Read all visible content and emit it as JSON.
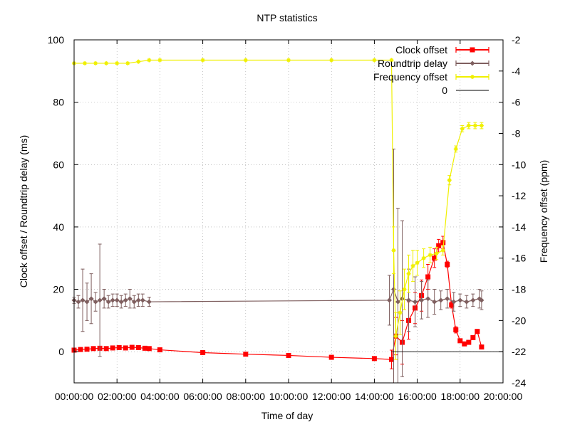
{
  "chart_data": {
    "type": "line",
    "title": "NTP statistics",
    "xlabel": "Time of day",
    "ylabel": "Clock offset / Roundtrip delay (ms)",
    "y2label": "Frequency offset (ppm)",
    "x_unit": "hours",
    "xlim": [
      0,
      20
    ],
    "ylim": [
      -10,
      100
    ],
    "y2lim": [
      -24,
      -2
    ],
    "x_ticks": [
      {
        "v": 0,
        "label": "00:00:00"
      },
      {
        "v": 2,
        "label": "02:00:00"
      },
      {
        "v": 4,
        "label": "04:00:00"
      },
      {
        "v": 6,
        "label": "06:00:00"
      },
      {
        "v": 8,
        "label": "08:00:00"
      },
      {
        "v": 10,
        "label": "10:00:00"
      },
      {
        "v": 12,
        "label": "12:00:00"
      },
      {
        "v": 14,
        "label": "14:00:00"
      },
      {
        "v": 16,
        "label": "16:00:00"
      },
      {
        "v": 18,
        "label": "18:00:00"
      },
      {
        "v": 20,
        "label": "20:00:00"
      }
    ],
    "y_ticks": [
      {
        "v": 0,
        "label": "0"
      },
      {
        "v": 20,
        "label": "20"
      },
      {
        "v": 40,
        "label": "40"
      },
      {
        "v": 60,
        "label": "60"
      },
      {
        "v": 80,
        "label": "80"
      },
      {
        "v": 100,
        "label": "100"
      }
    ],
    "y2_ticks": [
      {
        "v": -24,
        "label": "-24"
      },
      {
        "v": -22,
        "label": "-22"
      },
      {
        "v": -20,
        "label": "-20"
      },
      {
        "v": -18,
        "label": "-18"
      },
      {
        "v": -16,
        "label": "-16"
      },
      {
        "v": -14,
        "label": "-14"
      },
      {
        "v": -12,
        "label": "-12"
      },
      {
        "v": -10,
        "label": "-10"
      },
      {
        "v": -8,
        "label": "-8"
      },
      {
        "v": -6,
        "label": "-6"
      },
      {
        "v": -4,
        "label": "-4"
      },
      {
        "v": -2,
        "label": "-2"
      }
    ],
    "grid": true,
    "legend": "top-right",
    "series": [
      {
        "name": "Clock offset",
        "color": "#ff0000",
        "axis": "y1",
        "marker": "square",
        "error_bars": true,
        "x": [
          0.0,
          0.3,
          0.6,
          0.9,
          1.2,
          1.5,
          1.8,
          2.1,
          2.4,
          2.7,
          3.0,
          3.3,
          3.5,
          4.0,
          6.0,
          8.0,
          10.0,
          12.0,
          14.0,
          14.8,
          15.0,
          15.3,
          15.6,
          15.9,
          16.2,
          16.5,
          16.8,
          17.0,
          17.2,
          17.4,
          17.6,
          17.8,
          18.0,
          18.2,
          18.4,
          18.6,
          18.8,
          19.0
        ],
        "y": [
          0.5,
          0.7,
          0.8,
          1.0,
          1.1,
          1.0,
          1.2,
          1.3,
          1.2,
          1.4,
          1.3,
          1.1,
          1.0,
          0.6,
          -0.3,
          -0.8,
          -1.2,
          -1.8,
          -2.2,
          -2.5,
          5.0,
          3.0,
          10.0,
          14.0,
          18.0,
          24.0,
          30.0,
          34.0,
          35.0,
          28.0,
          15.0,
          7.0,
          3.5,
          2.5,
          3.0,
          4.5,
          6.5,
          1.5
        ],
        "err": [
          0.4,
          0.4,
          0.4,
          0.5,
          0.5,
          0.4,
          0.5,
          0.5,
          0.4,
          0.5,
          0.5,
          0.4,
          0.4,
          0,
          0,
          0,
          0,
          0,
          0,
          3,
          6,
          7,
          6,
          5,
          5,
          4,
          3,
          2,
          2,
          1,
          1,
          1,
          0.5,
          0.5,
          0.5,
          0.5,
          0.5,
          0.5
        ]
      },
      {
        "name": "Roundtrip delay",
        "color": "#7f5f5f",
        "axis": "y1",
        "marker": "diamond",
        "error_bars": true,
        "x": [
          0.0,
          0.2,
          0.4,
          0.6,
          0.8,
          1.0,
          1.2,
          1.4,
          1.6,
          1.8,
          2.0,
          2.2,
          2.4,
          2.6,
          2.8,
          3.0,
          3.2,
          3.5,
          14.7,
          14.9,
          15.1,
          15.3,
          15.6,
          15.9,
          16.2,
          16.5,
          16.8,
          17.1,
          17.4,
          17.7,
          18.0,
          18.3,
          18.6,
          18.9,
          19.0
        ],
        "y": [
          16.5,
          16.0,
          16.5,
          16.0,
          17.0,
          16.0,
          16.5,
          17.0,
          16.0,
          16.5,
          16.5,
          16.0,
          16.5,
          17.0,
          16.0,
          16.5,
          16.5,
          16.0,
          16.5,
          20.0,
          16.0,
          17.0,
          16.5,
          16.0,
          16.5,
          17.0,
          16.0,
          16.5,
          17.0,
          16.0,
          16.5,
          16.0,
          16.5,
          17.0,
          16.5
        ],
        "err": [
          1,
          2,
          10,
          6,
          8,
          3,
          18,
          3,
          2,
          2,
          2,
          2,
          2,
          3,
          2,
          2,
          2,
          1.5,
          8,
          45,
          30,
          25,
          10,
          8,
          6,
          6,
          4,
          3,
          3,
          3,
          2,
          2,
          2,
          3,
          3
        ]
      },
      {
        "name": "Frequency offset",
        "color": "#f0f000",
        "axis": "y2",
        "marker": "star",
        "error_bars": true,
        "x": [
          0.0,
          0.5,
          1.0,
          1.5,
          2.0,
          2.5,
          3.0,
          3.5,
          4.0,
          6.0,
          8.0,
          10.0,
          12.0,
          14.0,
          14.8,
          14.9,
          15.0,
          15.2,
          15.4,
          15.6,
          15.8,
          16.0,
          16.3,
          16.6,
          16.9,
          17.2,
          17.5,
          17.8,
          18.1,
          18.4,
          18.7,
          19.0
        ],
        "y": [
          -3.5,
          -3.5,
          -3.5,
          -3.5,
          -3.5,
          -3.5,
          -3.4,
          -3.3,
          -3.3,
          -3.3,
          -3.3,
          -3.3,
          -3.3,
          -3.3,
          -3.3,
          -15.5,
          -21.0,
          -19.5,
          -18.0,
          -17.0,
          -16.5,
          -16.3,
          -16.0,
          -15.8,
          -15.7,
          -15.5,
          -11.0,
          -9.0,
          -7.7,
          -7.5,
          -7.5,
          -7.5
        ],
        "err": [
          0,
          0,
          0,
          0,
          0,
          0,
          0,
          0,
          0,
          0,
          0,
          0,
          0,
          0,
          0,
          1.5,
          1.5,
          1.4,
          1.3,
          1.2,
          1.0,
          0.8,
          0.6,
          0.5,
          0.4,
          0.3,
          0.3,
          0.2,
          0.2,
          0.2,
          0.2,
          0.2
        ]
      },
      {
        "name": "0",
        "color": "#000000",
        "axis": "y1",
        "marker": "none",
        "error_bars": false,
        "x": [
          14.8,
          20.0
        ],
        "y": [
          0,
          0
        ]
      }
    ]
  }
}
